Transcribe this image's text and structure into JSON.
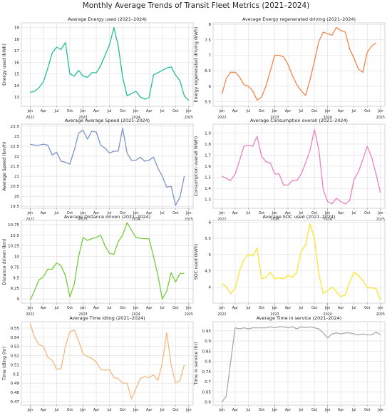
{
  "figure": {
    "title": "Monthly Average Trends of Transit Fleet Metrics (2021–2024)"
  },
  "x_ticks": {
    "minor": [
      {
        "label": "Jan",
        "m": 12
      },
      {
        "label": "Apr",
        "m": 15
      },
      {
        "label": "Jul",
        "m": 18
      },
      {
        "label": "Oct",
        "m": 21
      },
      {
        "label": "Jan",
        "m": 24
      },
      {
        "label": "Apr",
        "m": 27
      },
      {
        "label": "Jul",
        "m": 30
      },
      {
        "label": "Oct",
        "m": 33
      },
      {
        "label": "Jan",
        "m": 36
      },
      {
        "label": "Apr",
        "m": 39
      },
      {
        "label": "Jul",
        "m": 42
      },
      {
        "label": "Oct",
        "m": 45
      },
      {
        "label": "Jan",
        "m": 48
      }
    ],
    "major": [
      {
        "label": "2022",
        "m": 12
      },
      {
        "label": "2023",
        "m": 24
      },
      {
        "label": "2024",
        "m": 36
      },
      {
        "label": "2025",
        "m": 48
      }
    ]
  },
  "chart_data": [
    {
      "type": "line",
      "title": "Average Energy used (2021–2024)",
      "ylabel": "Energy used (kWh)",
      "color": "#1fbf9a",
      "ylim": [
        12.2,
        19.4
      ],
      "yticks": [
        13,
        14,
        15,
        16,
        17,
        18,
        19
      ],
      "x": [
        12,
        13,
        14,
        15,
        16,
        17,
        18,
        19,
        20,
        21,
        22,
        23,
        24,
        25,
        26,
        27,
        28,
        29,
        30,
        31,
        32,
        33,
        34,
        35,
        36,
        37,
        38,
        39,
        40,
        41,
        42,
        43,
        44,
        45,
        46,
        47
      ],
      "values": [
        13.4,
        13.5,
        13.8,
        14.3,
        15.5,
        16.8,
        17.3,
        17.1,
        17.7,
        15.0,
        14.8,
        15.3,
        14.8,
        14.7,
        15.1,
        15.1,
        15.7,
        16.6,
        17.5,
        19.0,
        17.4,
        14.7,
        13.1,
        13.3,
        13.5,
        13.0,
        12.8,
        12.95,
        14.9,
        15.1,
        15.3,
        15.5,
        15.6,
        14.9,
        14.4,
        13.1
      ],
      "x_end": 48,
      "last_value": 12.7
    },
    {
      "type": "line",
      "title": "Average Energy regenerated driving (2021–2024)",
      "ylabel": "Energy regenerated driving (kWh)",
      "color": "#f4844c",
      "ylim": [
        5.35,
        8.05
      ],
      "yticks": [
        5.5,
        6.0,
        6.5,
        7.0,
        7.5,
        8.0
      ],
      "x": [
        12,
        13,
        14,
        15,
        16,
        17,
        18,
        19,
        20,
        21,
        22,
        23,
        24,
        25,
        26,
        27,
        28,
        29,
        30,
        31,
        32,
        33,
        34,
        35,
        36,
        37,
        38,
        39,
        40,
        41,
        42,
        43,
        44,
        45,
        46,
        47
      ],
      "values": [
        5.75,
        6.25,
        6.45,
        6.45,
        6.3,
        6.05,
        6.0,
        5.85,
        5.55,
        5.65,
        6.0,
        6.5,
        7.0,
        7.0,
        6.95,
        6.7,
        6.35,
        6.05,
        5.85,
        5.7,
        6.2,
        6.8,
        7.45,
        7.75,
        7.7,
        7.65,
        7.9,
        7.8,
        7.75,
        7.2,
        6.9,
        6.55,
        6.45,
        7.1,
        7.3,
        7.4
      ],
      "x_end": 47,
      "last_value": 7.4
    },
    {
      "type": "line",
      "title": "Average Average Speed (2021–2024)",
      "ylabel": "Average Speed (km/h)",
      "color": "#7b93c8",
      "ylim": [
        19.4,
        23.6
      ],
      "yticks": [
        19.5,
        20.0,
        20.5,
        21.0,
        21.5,
        22.0,
        22.5,
        23.0,
        23.5
      ],
      "x": [
        12,
        13,
        14,
        15,
        16,
        17,
        18,
        19,
        20,
        21,
        22,
        23,
        24,
        25,
        26,
        27,
        28,
        29,
        30,
        31,
        32,
        33,
        34,
        35,
        36,
        37,
        38,
        39,
        40,
        41,
        42,
        43,
        44,
        45,
        46,
        47
      ],
      "values": [
        22.6,
        22.55,
        22.55,
        22.6,
        22.55,
        22.05,
        22.2,
        21.75,
        21.7,
        21.6,
        22.3,
        23.15,
        23.3,
        22.85,
        23.25,
        23.2,
        22.55,
        22.4,
        22.15,
        22.25,
        22.25,
        23.4,
        22.15,
        21.8,
        21.8,
        21.95,
        21.75,
        21.8,
        21.95,
        21.4,
        21.0,
        20.45,
        20.5,
        19.55,
        19.95,
        21.0
      ],
      "x_end": 47,
      "last_value": 21.0
    },
    {
      "type": "line",
      "title": "Average Consumption overall (2021–2024)",
      "ylabel": "Consumption overall (kWh)",
      "color": "#ee7fc4",
      "ylim": [
        1.22,
        1.98
      ],
      "yticks": [
        1.3,
        1.4,
        1.5,
        1.6,
        1.7,
        1.8,
        1.9
      ],
      "x": [
        12,
        13,
        14,
        15,
        16,
        17,
        18,
        19,
        20,
        21,
        22,
        23,
        24,
        25,
        26,
        27,
        28,
        29,
        30,
        31,
        32,
        33,
        34,
        35,
        36,
        37,
        38,
        39,
        40,
        41,
        42,
        43,
        44,
        45,
        46,
        47
      ],
      "values": [
        1.51,
        1.49,
        1.47,
        1.53,
        1.65,
        1.78,
        1.79,
        1.78,
        1.87,
        1.69,
        1.64,
        1.63,
        1.53,
        1.53,
        1.43,
        1.43,
        1.47,
        1.47,
        1.53,
        1.63,
        1.74,
        1.93,
        1.75,
        1.39,
        1.28,
        1.26,
        1.31,
        1.28,
        1.26,
        1.29,
        1.48,
        1.55,
        1.66,
        1.78,
        1.68,
        1.53
      ],
      "x_end": 48,
      "last_value": 1.36
    },
    {
      "type": "line",
      "title": "Average Distance driven (2021–2024)",
      "ylabel": "Distance driven (km)",
      "color": "#74cc3a",
      "ylim": [
        8.9,
        10.85
      ],
      "yticks": [
        9.0,
        9.25,
        9.5,
        9.75,
        10.0,
        10.25,
        10.5,
        10.75
      ],
      "x": [
        12,
        13,
        14,
        15,
        16,
        17,
        18,
        19,
        20,
        21,
        22,
        23,
        24,
        25,
        26,
        27,
        28,
        29,
        30,
        31,
        32,
        33,
        34,
        35,
        36,
        37,
        38,
        39,
        40,
        41,
        42,
        43,
        44,
        45,
        46,
        47
      ],
      "values": [
        8.97,
        9.2,
        9.45,
        9.52,
        9.7,
        9.7,
        9.85,
        9.78,
        9.55,
        9.05,
        9.35,
        10.0,
        10.45,
        10.38,
        10.42,
        10.45,
        10.5,
        10.25,
        10.07,
        10.05,
        10.35,
        10.5,
        10.8,
        10.62,
        10.45,
        10.43,
        10.42,
        10.42,
        10.0,
        9.55,
        9.0,
        9.18,
        9.62,
        9.4,
        9.6,
        9.6
      ],
      "x_end": 47,
      "last_value": 9.6
    },
    {
      "type": "line",
      "title": "Average SOC used (2021–2024)",
      "ylabel": "SOC used (kWh)",
      "color": "#fde52b",
      "ylim": [
        3.5,
        6.05
      ],
      "yticks": [
        4.0,
        4.5,
        5.0,
        5.5,
        6.0
      ],
      "x": [
        12,
        13,
        14,
        15,
        16,
        17,
        18,
        19,
        20,
        21,
        22,
        23,
        24,
        25,
        26,
        27,
        28,
        29,
        30,
        31,
        32,
        33,
        34,
        35,
        36,
        37,
        38,
        39,
        40,
        41,
        42,
        43,
        44,
        45,
        46,
        47
      ],
      "values": [
        4.1,
        4.0,
        3.8,
        3.95,
        4.5,
        4.85,
        5.0,
        4.95,
        5.2,
        4.25,
        4.3,
        4.45,
        4.25,
        4.28,
        4.25,
        4.35,
        4.3,
        4.45,
        5.1,
        5.3,
        5.95,
        5.5,
        4.4,
        3.8,
        3.88,
        4.0,
        3.85,
        3.7,
        3.75,
        4.15,
        4.45,
        4.35,
        4.2,
        3.97,
        3.97,
        3.95
      ],
      "x_end": 48,
      "last_value": 3.6
    },
    {
      "type": "line",
      "title": "Average Time idling (2021–2024)",
      "ylabel": "Time idling (hr)",
      "color": "#f6b87f",
      "ylim": [
        0.466,
        0.557
      ],
      "yticks": [
        0.47,
        0.48,
        0.49,
        0.5,
        0.51,
        0.52,
        0.53,
        0.54,
        0.55
      ],
      "x": [
        12,
        13,
        14,
        15,
        16,
        17,
        18,
        19,
        20,
        21,
        22,
        23,
        24,
        25,
        26,
        27,
        28,
        29,
        30,
        31,
        32,
        33,
        34,
        35,
        36,
        37,
        38,
        39,
        40,
        41,
        42,
        43,
        44,
        45,
        46,
        47
      ],
      "values": [
        0.555,
        0.54,
        0.532,
        0.53,
        0.518,
        0.515,
        0.505,
        0.506,
        0.53,
        0.546,
        0.548,
        0.536,
        0.522,
        0.519,
        0.517,
        0.513,
        0.505,
        0.504,
        0.505,
        0.496,
        0.495,
        0.49,
        0.49,
        0.473,
        0.484,
        0.495,
        0.497,
        0.496,
        0.499,
        0.493,
        0.512,
        0.545,
        0.51,
        0.49,
        0.493,
        0.51
      ],
      "x_end": 47,
      "last_value": 0.51
    },
    {
      "type": "line",
      "title": "Average Time in service (2021–2024)",
      "ylabel": "Time in service (hr)",
      "color": "#a8a8a8",
      "ylim": [
        0.585,
        0.995
      ],
      "yticks": [
        0.6,
        0.65,
        0.7,
        0.75,
        0.8,
        0.85,
        0.9,
        0.95
      ],
      "x": [
        12,
        13,
        14,
        15,
        16,
        17,
        18,
        19,
        20,
        21,
        22,
        23,
        24,
        25,
        26,
        27,
        28,
        29,
        30,
        31,
        32,
        33,
        34,
        35,
        36,
        37,
        38,
        39,
        40,
        41,
        42,
        43,
        44,
        45,
        46,
        47
      ],
      "values": [
        0.6,
        0.63,
        0.8,
        0.965,
        0.96,
        0.965,
        0.96,
        0.965,
        0.965,
        0.965,
        0.965,
        0.97,
        0.965,
        0.97,
        0.97,
        0.965,
        0.97,
        0.96,
        0.97,
        0.965,
        0.97,
        0.965,
        0.96,
        0.94,
        0.915,
        0.935,
        0.94,
        0.935,
        0.94,
        0.94,
        0.935,
        0.93,
        0.935,
        0.93,
        0.93,
        0.945
      ],
      "x_end": 48,
      "last_value": 0.93
    }
  ]
}
